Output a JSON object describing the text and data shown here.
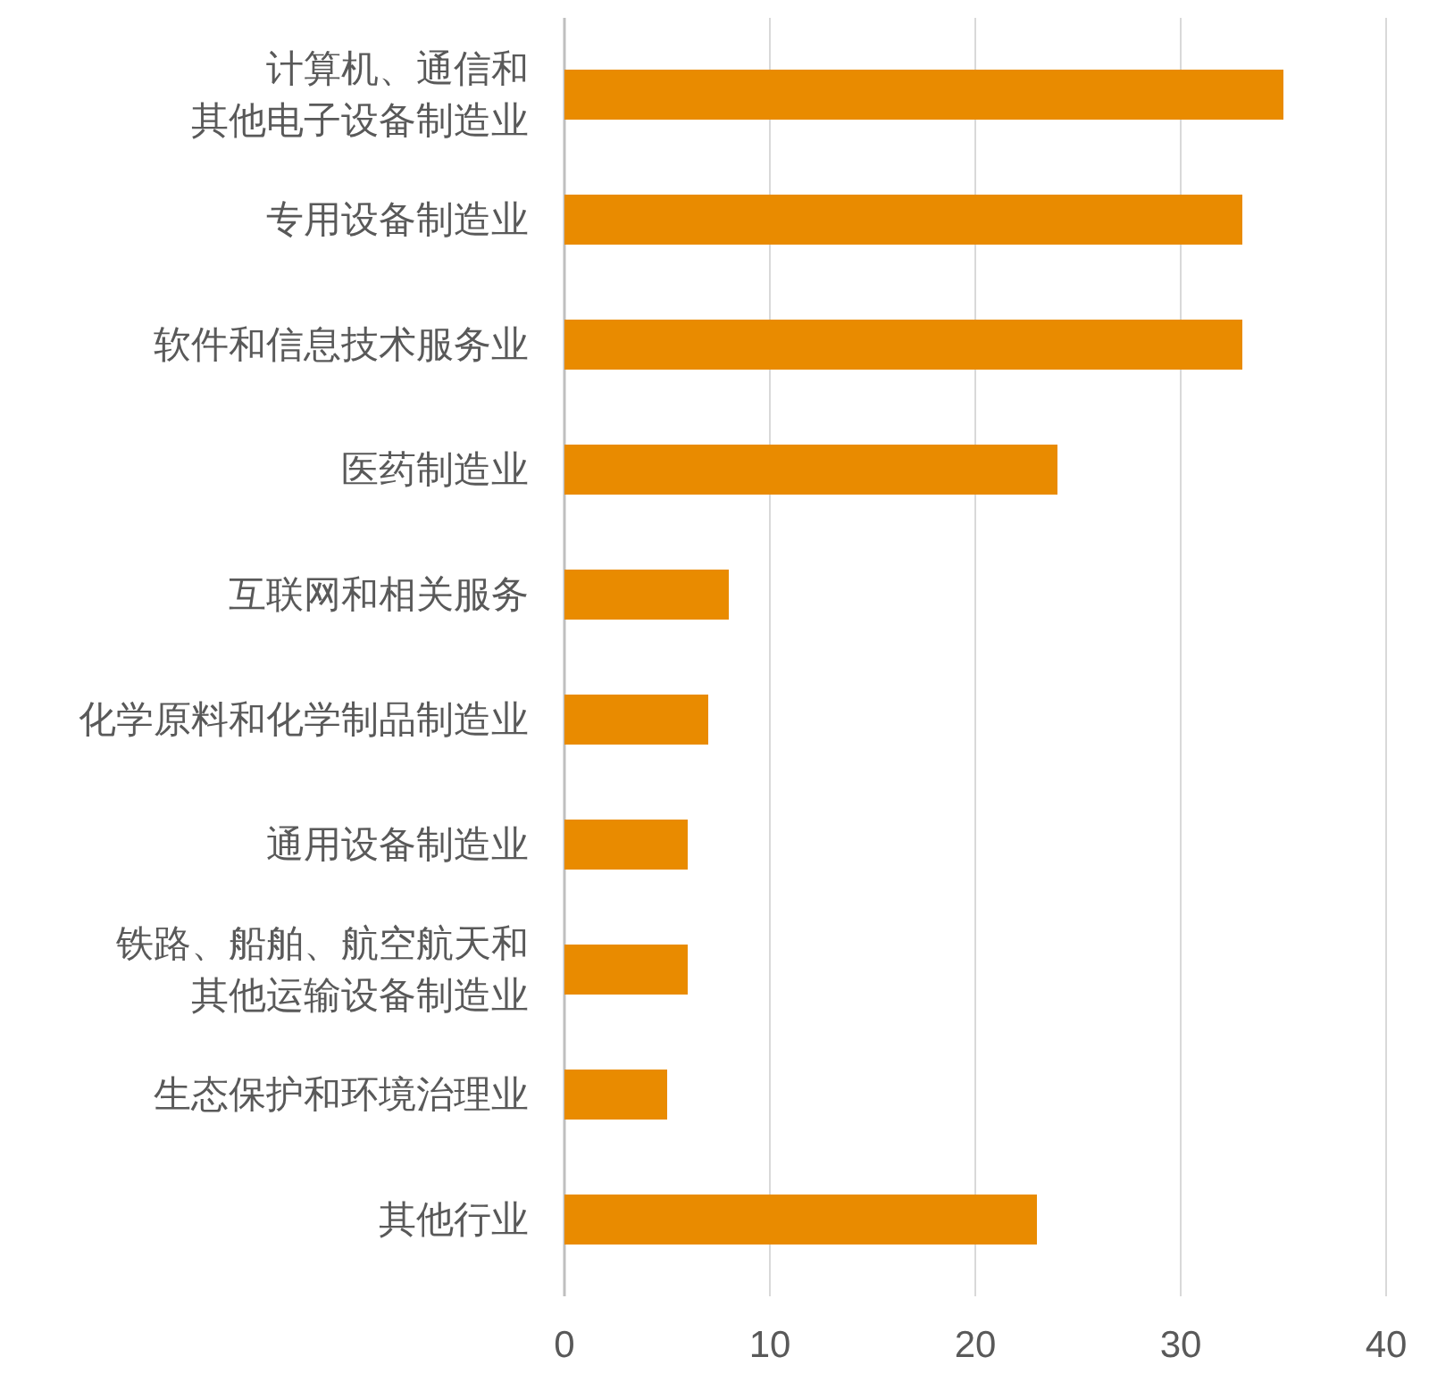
{
  "chart_data": {
    "type": "bar",
    "orientation": "horizontal",
    "categories": [
      "计算机、通信和其他电子设备制造业",
      "专用设备制造业",
      "软件和信息技术服务业",
      "医药制造业",
      "互联网和相关服务",
      "化学原料和化学制品制造业",
      "通用设备制造业",
      "铁路、船舶、航空航天和其他运输设备制造业",
      "生态保护和环境治理业",
      "其他行业"
    ],
    "values": [
      35,
      33,
      33,
      24,
      8,
      7,
      6,
      6,
      5,
      23
    ],
    "color": "#e98b00",
    "xlim": [
      0,
      40
    ],
    "xticks": [
      0,
      10,
      20,
      30,
      40
    ],
    "grid": "x"
  }
}
